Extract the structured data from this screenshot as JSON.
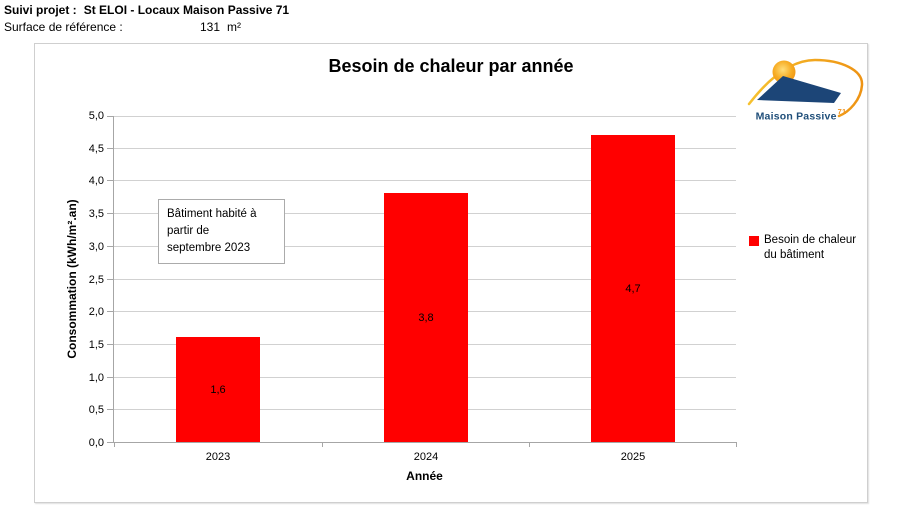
{
  "header": {
    "project_label": "Suivi projet :",
    "project_value": "St ELOI - Locaux Maison Passive 71",
    "surface_label": "Surface de référence :",
    "surface_value": "131",
    "surface_unit": "m²"
  },
  "logo": {
    "name": "Maison Passive",
    "number": "71"
  },
  "annotation": {
    "lines": [
      "Bâtiment habité à",
      "partir de",
      "septembre 2023"
    ]
  },
  "chart_data": {
    "type": "bar",
    "title": "Besoin de chaleur par année",
    "categories": [
      "2023",
      "2024",
      "2025"
    ],
    "values": [
      1.6,
      3.8,
      4.7
    ],
    "value_labels": [
      "1,6",
      "3,8",
      "4,7"
    ],
    "xlabel": "Année",
    "ylabel": "Consommation (kWh/m².an)",
    "ylim": [
      0,
      5
    ],
    "ytick_step": 0.5,
    "ytick_labels": [
      "0,0",
      "0,5",
      "1,0",
      "1,5",
      "2,0",
      "2,5",
      "3,0",
      "3,5",
      "4,0",
      "4,5",
      "5,0"
    ],
    "legend": [
      "Besoin de chaleur du bâtiment"
    ],
    "legend_position": "right",
    "grid": true,
    "bar_color": "#FF0000"
  }
}
